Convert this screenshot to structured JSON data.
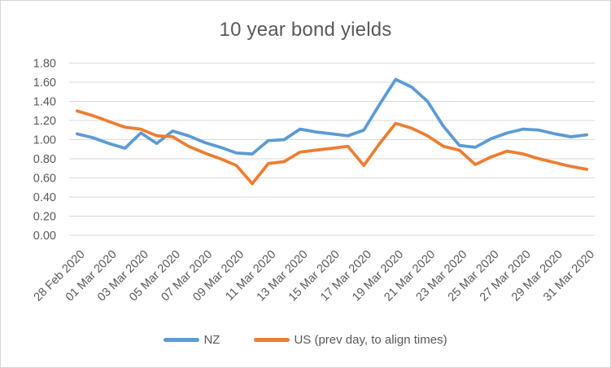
{
  "chart": {
    "colors": {
      "nz_line": "#5B9BD5",
      "us_line": "#ED7D31",
      "gridline": "#D9D9D9",
      "text": "#595959",
      "border": "#D6D6D6",
      "background": "#FFFFFF"
    }
  },
  "chart_data": {
    "type": "line",
    "title": "10 year bond yields",
    "categories": [
      "28 Feb 2020",
      "29 Feb 2020",
      "01 Mar 2020",
      "02 Mar 2020",
      "03 Mar 2020",
      "04 Mar 2020",
      "05 Mar 2020",
      "06 Mar 2020",
      "07 Mar 2020",
      "08 Mar 2020",
      "09 Mar 2020",
      "10 Mar 2020",
      "11 Mar 2020",
      "12 Mar 2020",
      "13 Mar 2020",
      "14 Mar 2020",
      "15 Mar 2020",
      "16 Mar 2020",
      "17 Mar 2020",
      "18 Mar 2020",
      "19 Mar 2020",
      "20 Mar 2020",
      "21 Mar 2020",
      "22 Mar 2020",
      "23 Mar 2020",
      "24 Mar 2020",
      "25 Mar 2020",
      "26 Mar 2020",
      "27 Mar 2020",
      "28 Mar 2020",
      "29 Mar 2020",
      "30 Mar 2020",
      "31 Mar 2020"
    ],
    "x_label_shown_every": 2,
    "series": [
      {
        "name": "NZ",
        "color": "#5B9BD5",
        "values": [
          1.06,
          1.02,
          0.96,
          0.91,
          1.07,
          0.96,
          1.09,
          1.04,
          0.97,
          0.92,
          0.86,
          0.85,
          0.99,
          1.0,
          1.11,
          1.08,
          1.06,
          1.04,
          1.1,
          1.37,
          1.63,
          1.55,
          1.4,
          1.14,
          0.94,
          0.92,
          1.01,
          1.07,
          1.11,
          1.1,
          1.06,
          1.03,
          1.05
        ]
      },
      {
        "name": "US (prev day, to align times)",
        "color": "#ED7D31",
        "values": [
          1.3,
          1.25,
          1.19,
          1.13,
          1.11,
          1.04,
          1.03,
          0.93,
          0.86,
          0.8,
          0.73,
          0.54,
          0.75,
          0.77,
          0.87,
          0.89,
          0.91,
          0.93,
          0.73,
          0.96,
          1.17,
          1.12,
          1.04,
          0.93,
          0.89,
          0.74,
          0.82,
          0.88,
          0.85,
          0.8,
          0.76,
          0.72,
          0.69
        ]
      }
    ],
    "xlabel": "",
    "ylabel": "",
    "ylim": [
      0,
      1.8
    ],
    "y_tick_step": 0.2,
    "y_tick_labels": [
      "0.00",
      "0.20",
      "0.40",
      "0.60",
      "0.80",
      "1.00",
      "1.20",
      "1.40",
      "1.60",
      "1.80"
    ],
    "grid": true,
    "legend_position": "bottom"
  }
}
